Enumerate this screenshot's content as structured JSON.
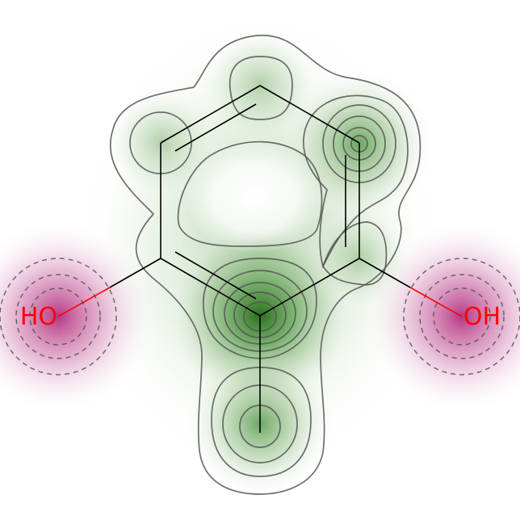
{
  "molecule": {
    "atoms": [
      {
        "id": "O1",
        "label": "HO",
        "color": "#ff0000"
      },
      {
        "id": "O2",
        "label": "OH",
        "color": "#ff0000"
      }
    ],
    "colors": {
      "positive": "#2e7d1f",
      "negative": "#b0207a",
      "bond": "#000000",
      "heteroatom": "#ff0000"
    }
  }
}
